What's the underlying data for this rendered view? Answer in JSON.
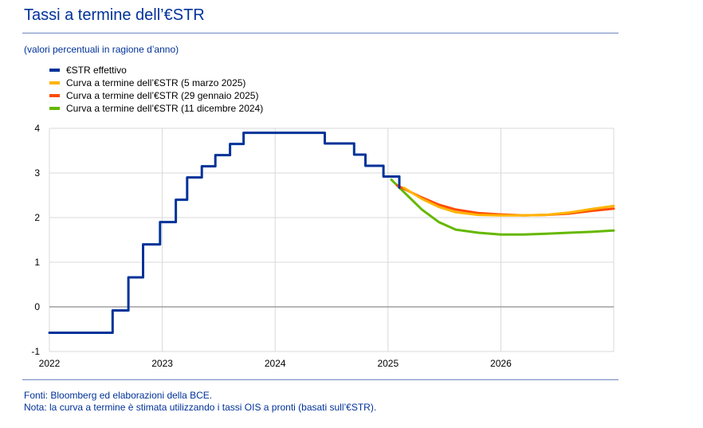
{
  "title": "Tassi a termine dell’€STR",
  "subtitle": "(valori percentuali in ragione d’anno)",
  "footnotes": {
    "source": "Fonti: Bloomberg ed elaborazioni della BCE.",
    "note": "Nota: la curva a termine è stimata utilizzando i tassi OIS a pronti (basati sull’€STR)."
  },
  "colors": {
    "title": "#003299",
    "grid": "#d9d9d9",
    "zero": "#8c8c8c"
  },
  "chart_data": {
    "type": "line",
    "xlim": [
      2022,
      2027
    ],
    "ylim": [
      -1,
      4
    ],
    "grid": true,
    "legend": "top-left",
    "x_ticks": [
      "2022",
      "2023",
      "2024",
      "2025",
      "2026"
    ],
    "y_ticks": [
      "4",
      "3",
      "2",
      "1",
      "0",
      "-1"
    ],
    "series": [
      {
        "name": "€STR effettivo",
        "color": "#003299",
        "step": true,
        "x": [
          2022.0,
          2022.56,
          2022.56,
          2022.7,
          2022.7,
          2022.83,
          2022.83,
          2022.98,
          2022.98,
          2023.12,
          2023.12,
          2023.22,
          2023.22,
          2023.35,
          2023.35,
          2023.47,
          2023.47,
          2023.6,
          2023.6,
          2023.72,
          2023.72,
          2024.44,
          2024.44,
          2024.7,
          2024.7,
          2024.8,
          2024.8,
          2024.96,
          2024.96,
          2025.1,
          2025.1
        ],
        "y": [
          -0.58,
          -0.58,
          -0.08,
          -0.08,
          0.66,
          0.66,
          1.4,
          1.4,
          1.9,
          1.9,
          2.4,
          2.4,
          2.9,
          2.9,
          3.15,
          3.15,
          3.4,
          3.4,
          3.65,
          3.65,
          3.9,
          3.9,
          3.66,
          3.66,
          3.41,
          3.41,
          3.16,
          3.16,
          2.92,
          2.92,
          2.67
        ]
      },
      {
        "name": "Curva  a termine dell’€STR (5 marzo 2025)",
        "color": "#ffb400",
        "x": [
          2025.14,
          2025.3,
          2025.45,
          2025.6,
          2025.8,
          2026.0,
          2026.2,
          2026.4,
          2026.6,
          2026.8,
          2027.0
        ],
        "y": [
          2.67,
          2.42,
          2.24,
          2.12,
          2.06,
          2.05,
          2.05,
          2.06,
          2.11,
          2.19,
          2.26
        ]
      },
      {
        "name": "Curva  a termine dell’€STR (29 gennaio 2025)",
        "color": "#ff4b00",
        "x": [
          2025.08,
          2025.3,
          2025.45,
          2025.6,
          2025.8,
          2026.0,
          2026.2,
          2026.4,
          2026.6,
          2026.8,
          2027.0
        ],
        "y": [
          2.72,
          2.45,
          2.29,
          2.18,
          2.1,
          2.07,
          2.05,
          2.06,
          2.09,
          2.15,
          2.2
        ]
      },
      {
        "name": "Curva  a termine dell’€STR (11 dicembre 2024)",
        "color": "#65b800",
        "x": [
          2025.03,
          2025.15,
          2025.3,
          2025.45,
          2025.6,
          2025.8,
          2026.0,
          2026.2,
          2026.4,
          2026.6,
          2026.8,
          2027.0
        ],
        "y": [
          2.85,
          2.55,
          2.18,
          1.9,
          1.73,
          1.66,
          1.62,
          1.62,
          1.64,
          1.66,
          1.68,
          1.71
        ]
      }
    ]
  }
}
